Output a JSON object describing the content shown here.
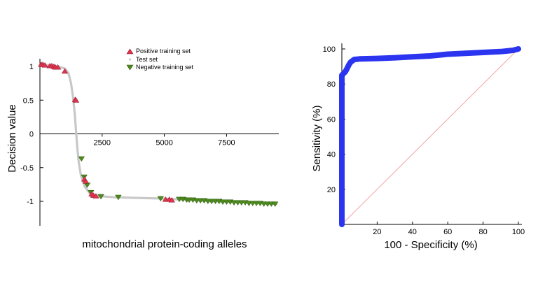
{
  "chart_data": [
    {
      "type": "scatter",
      "title": "",
      "xlabel": "mitochondrial protein-coding alleles",
      "ylabel": "Decision value",
      "xlim": [
        0,
        9600
      ],
      "ylim": [
        -1.25,
        1.1
      ],
      "x_ticks": [
        {
          "v": 2500,
          "label": "2500"
        },
        {
          "v": 5000,
          "label": "5000"
        },
        {
          "v": 7500,
          "label": "7500"
        }
      ],
      "y_ticks": [
        {
          "v": 1,
          "label": "1"
        },
        {
          "v": 0.5,
          "label": "0.5"
        },
        {
          "v": 0,
          "label": "0"
        },
        {
          "v": -0.5,
          "label": "-0.5"
        },
        {
          "v": -1,
          "label": "-1"
        }
      ],
      "grid": false,
      "legend_position": "top-center",
      "test_set_curve": [
        [
          0,
          1.03
        ],
        [
          300,
          1.02
        ],
        [
          700,
          1.0
        ],
        [
          1000,
          0.97
        ],
        [
          1150,
          0.9
        ],
        [
          1250,
          0.75
        ],
        [
          1330,
          0.55
        ],
        [
          1400,
          0.3
        ],
        [
          1450,
          0.05
        ],
        [
          1500,
          -0.2
        ],
        [
          1560,
          -0.42
        ],
        [
          1650,
          -0.62
        ],
        [
          1800,
          -0.78
        ],
        [
          2000,
          -0.88
        ],
        [
          2300,
          -0.92
        ],
        [
          3000,
          -0.94
        ],
        [
          4000,
          -0.95
        ],
        [
          5000,
          -0.96
        ],
        [
          6000,
          -0.98
        ],
        [
          7000,
          -1.0
        ],
        [
          8000,
          -1.01
        ],
        [
          9000,
          -1.03
        ],
        [
          9500,
          -1.04
        ]
      ],
      "series": [
        {
          "name": "Positive training set",
          "marker": "triangle-up",
          "color": "#e0334f",
          "points": [
            [
              50,
              1.03
            ],
            [
              120,
              1.03
            ],
            [
              200,
              1.02
            ],
            [
              400,
              1.01
            ],
            [
              480,
              1.01
            ],
            [
              560,
              1.0
            ],
            [
              620,
              0.99
            ],
            [
              720,
              0.99
            ],
            [
              1000,
              0.93
            ],
            [
              1420,
              0.51
            ],
            [
              1450,
              0.5
            ],
            [
              1790,
              -0.67
            ],
            [
              1840,
              -0.7
            ],
            [
              2080,
              -0.89
            ],
            [
              2150,
              -0.91
            ],
            [
              2250,
              -0.92
            ],
            [
              5050,
              -0.97
            ],
            [
              5200,
              -0.97
            ],
            [
              5300,
              -0.98
            ]
          ]
        },
        {
          "name": "Test set",
          "marker": "dot",
          "color": "#c8c8c8",
          "points": []
        },
        {
          "name": "Negative training set",
          "marker": "triangle-down",
          "color": "#4d8a1c",
          "points": [
            [
              1670,
              -0.37
            ],
            [
              1780,
              -0.64
            ],
            [
              1900,
              -0.76
            ],
            [
              2050,
              -0.87
            ],
            [
              2450,
              -0.93
            ],
            [
              3150,
              -0.94
            ],
            [
              4850,
              -0.96
            ],
            [
              5600,
              -0.97
            ],
            [
              5750,
              -0.97
            ],
            [
              5900,
              -0.98
            ],
            [
              6000,
              -0.98
            ],
            [
              6150,
              -0.98
            ],
            [
              6300,
              -0.99
            ],
            [
              6450,
              -0.99
            ],
            [
              6600,
              -0.99
            ],
            [
              6750,
              -1.0
            ],
            [
              6900,
              -1.0
            ],
            [
              7050,
              -1.0
            ],
            [
              7200,
              -1.0
            ],
            [
              7350,
              -1.01
            ],
            [
              7500,
              -1.01
            ],
            [
              7650,
              -1.01
            ],
            [
              7800,
              -1.02
            ],
            [
              7950,
              -1.02
            ],
            [
              8100,
              -1.02
            ],
            [
              8250,
              -1.02
            ],
            [
              8400,
              -1.03
            ],
            [
              8550,
              -1.03
            ],
            [
              8700,
              -1.03
            ],
            [
              8850,
              -1.03
            ],
            [
              9000,
              -1.04
            ],
            [
              9150,
              -1.04
            ],
            [
              9300,
              -1.04
            ],
            [
              9450,
              -1.04
            ]
          ]
        }
      ]
    },
    {
      "type": "line",
      "title": "",
      "xlabel": "100 - Specificity (%)",
      "ylabel": "Sensitivity (%)",
      "xlim": [
        0,
        100
      ],
      "ylim": [
        0,
        100
      ],
      "x_ticks": [
        {
          "v": 20,
          "label": "20"
        },
        {
          "v": 40,
          "label": "40"
        },
        {
          "v": 60,
          "label": "60"
        },
        {
          "v": 80,
          "label": "80"
        },
        {
          "v": 100,
          "label": "100"
        }
      ],
      "y_ticks": [
        {
          "v": 20,
          "label": "20"
        },
        {
          "v": 40,
          "label": "40"
        },
        {
          "v": 60,
          "label": "60"
        },
        {
          "v": 80,
          "label": "80"
        },
        {
          "v": 100,
          "label": "100"
        }
      ],
      "grid": false,
      "series": [
        {
          "color": "#2b35f0",
          "points": [
            [
              0,
              0
            ],
            [
              0,
              85
            ],
            [
              1,
              86
            ],
            [
              2,
              87
            ],
            [
              3,
              89
            ],
            [
              4,
              91
            ],
            [
              5,
              92.5
            ],
            [
              7,
              94
            ],
            [
              10,
              94.3
            ],
            [
              20,
              94.6
            ],
            [
              30,
              95
            ],
            [
              40,
              95.5
            ],
            [
              50,
              96
            ],
            [
              60,
              97
            ],
            [
              70,
              97.5
            ],
            [
              80,
              98
            ],
            [
              90,
              98.5
            ],
            [
              97,
              99.2
            ],
            [
              100,
              100
            ]
          ]
        },
        {
          "color": "#f4a3a3",
          "points": [
            [
              0,
              0
            ],
            [
              100,
              100
            ]
          ]
        }
      ]
    }
  ]
}
